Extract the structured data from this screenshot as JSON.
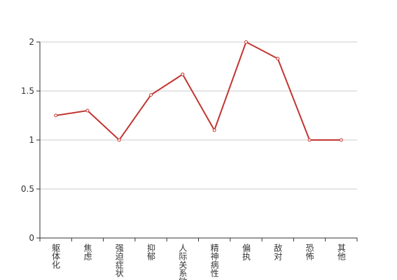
{
  "chart_data": {
    "type": "line",
    "categories": [
      "躯体化",
      "焦虑",
      "强迫症状",
      "抑郁",
      "人际关系敏感",
      "精神病性",
      "偏执",
      "敌对",
      "恐怖",
      "其他"
    ],
    "values": [
      1.25,
      1.3,
      1.0,
      1.46,
      1.67,
      1.1,
      2.0,
      1.83,
      1.0,
      1.0
    ],
    "color": "#c23531",
    "ylim": [
      0,
      2
    ],
    "yticks": [
      0,
      0.5,
      1,
      1.5,
      2
    ],
    "grid": true
  }
}
